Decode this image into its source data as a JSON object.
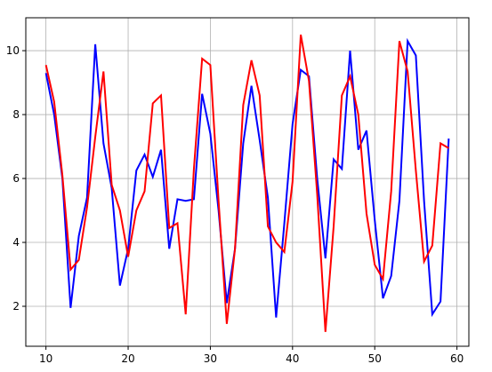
{
  "chart_data": {
    "type": "line",
    "x": [
      10,
      11,
      12,
      13,
      14,
      15,
      16,
      17,
      18,
      19,
      20,
      21,
      22,
      23,
      24,
      25,
      26,
      27,
      28,
      29,
      30,
      31,
      32,
      33,
      34,
      35,
      36,
      37,
      38,
      39,
      40,
      41,
      42,
      43,
      44,
      45,
      46,
      47,
      48,
      49,
      50,
      51,
      52,
      53,
      54,
      55,
      56,
      57,
      58,
      59
    ],
    "series": [
      {
        "color": "#0000ff",
        "values": [
          9.3,
          8.0,
          6.0,
          1.95,
          4.2,
          5.4,
          10.2,
          7.1,
          5.7,
          2.65,
          3.8,
          6.25,
          6.75,
          6.05,
          6.9,
          3.8,
          5.35,
          5.3,
          5.35,
          8.65,
          7.4,
          5.0,
          2.1,
          3.8,
          7.1,
          8.9,
          7.2,
          5.4,
          1.65,
          4.6,
          7.7,
          9.4,
          9.2,
          6.0,
          3.5,
          6.6,
          6.3,
          10.0,
          6.9,
          7.5,
          4.7,
          2.25,
          2.95,
          5.3,
          10.3,
          9.85,
          5.3,
          1.75,
          2.15,
          7.25
        ]
      },
      {
        "color": "#ff0000",
        "values": [
          9.55,
          8.4,
          6.1,
          3.15,
          3.45,
          5.1,
          7.3,
          9.35,
          5.8,
          5.0,
          3.55,
          5.0,
          5.6,
          8.35,
          8.6,
          4.45,
          4.6,
          1.75,
          6.3,
          9.75,
          9.55,
          5.3,
          1.45,
          3.8,
          8.3,
          9.7,
          8.6,
          4.5,
          4.0,
          3.7,
          5.9,
          10.5,
          9.05,
          5.5,
          1.2,
          4.5,
          8.6,
          9.2,
          8.0,
          4.9,
          3.3,
          2.85,
          5.6,
          10.3,
          9.35,
          6.25,
          3.4,
          3.9,
          7.1,
          6.95
        ]
      }
    ],
    "xlim": [
      7.55,
      61.45
    ],
    "xticks": [
      10,
      20,
      30,
      40,
      50,
      60
    ],
    "ylim": [
      0.75,
      11.03
    ],
    "yticks": [
      2,
      4,
      6,
      8,
      10
    ],
    "grid": true
  }
}
